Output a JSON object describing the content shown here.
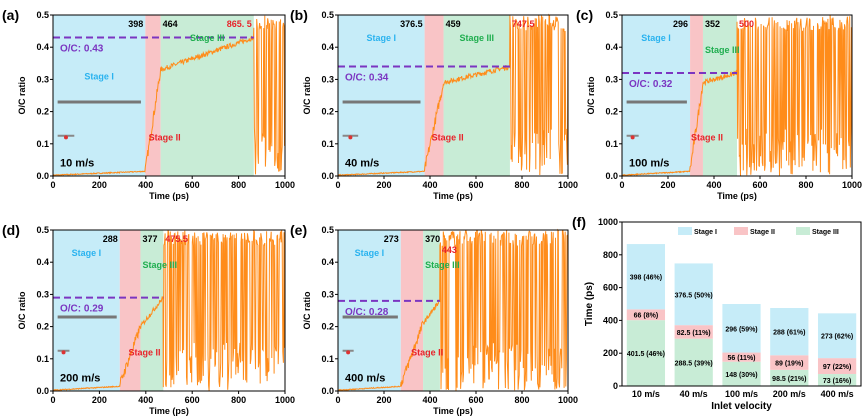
{
  "colors": {
    "stage1": "#c6ecf8",
    "stage2": "#f9c4c6",
    "stage3": "#c8ecd6",
    "curve": "#ff8c1a",
    "dash": "#7b35c1",
    "stage1_text": "#2ab3ef",
    "stage2_text": "#e8232a",
    "stage3_text": "#1fae4f"
  },
  "chart_data": [
    {
      "type": "line",
      "panel": "(a)",
      "velocity": "10 m/s",
      "xlabel": "Time (ps)",
      "ylabel": "O/C ratio",
      "xlim": [
        0,
        1000
      ],
      "ylim": [
        0,
        0.5
      ],
      "xticks": [
        0,
        200,
        400,
        600,
        800,
        1000
      ],
      "yticks": [
        0.0,
        0.1,
        0.2,
        0.3,
        0.4,
        0.5
      ],
      "boundaries": [
        398,
        464,
        865.5
      ],
      "boundary_labels": [
        "398",
        "464",
        "865. 5"
      ],
      "oc_label": "O/C: 0.43",
      "oc": 0.43,
      "stage_labels": [
        "Stage I",
        "Stage II",
        "Stage III"
      ],
      "plateau_start": 0.33
    },
    {
      "type": "line",
      "panel": "(b)",
      "velocity": "40 m/s",
      "xlabel": "Time (ps)",
      "ylabel": "O/C ratio",
      "xlim": [
        0,
        1000
      ],
      "ylim": [
        0,
        0.5
      ],
      "xticks": [
        0,
        200,
        400,
        600,
        800,
        1000
      ],
      "yticks": [
        0.0,
        0.1,
        0.2,
        0.3,
        0.4,
        0.5
      ],
      "boundaries": [
        376.5,
        459,
        747.5
      ],
      "boundary_labels": [
        "376.5",
        "459",
        "747.5"
      ],
      "oc_label": "O/C: 0.34",
      "oc": 0.34,
      "stage_labels": [
        "Stage I",
        "Stage II",
        "Stage III"
      ],
      "plateau_start": 0.29
    },
    {
      "type": "line",
      "panel": "(c)",
      "velocity": "100 m/s",
      "xlabel": "Time (ps)",
      "ylabel": "O/C ratio",
      "xlim": [
        0,
        1000
      ],
      "ylim": [
        0,
        0.5
      ],
      "xticks": [
        0,
        200,
        400,
        600,
        800,
        1000
      ],
      "yticks": [
        0.0,
        0.1,
        0.2,
        0.3,
        0.4,
        0.5
      ],
      "boundaries": [
        296,
        352,
        500
      ],
      "boundary_labels": [
        "296",
        "352",
        "500"
      ],
      "oc_label": "O/C: 0.32",
      "oc": 0.32,
      "stage_labels": [
        "Stage I",
        "Stage II",
        "Stage III"
      ],
      "plateau_start": 0.29
    },
    {
      "type": "line",
      "panel": "(d)",
      "velocity": "200 m/s",
      "xlabel": "Time (ps)",
      "ylabel": "O/C ratio",
      "xlim": [
        0,
        1000
      ],
      "ylim": [
        0,
        0.5
      ],
      "xticks": [
        0,
        200,
        400,
        600,
        800,
        1000
      ],
      "yticks": [
        0.0,
        0.1,
        0.2,
        0.3,
        0.4,
        0.5
      ],
      "boundaries": [
        288,
        377,
        475.5
      ],
      "boundary_labels": [
        "288",
        "377",
        "475.5"
      ],
      "oc_label": "O/C: 0.29",
      "oc": 0.29,
      "stage_labels": [
        "Stage I",
        "Stage II",
        "Stage III"
      ],
      "plateau_start": 0.2
    },
    {
      "type": "line",
      "panel": "(e)",
      "velocity": "400 m/s",
      "xlabel": "Time (ps)",
      "ylabel": "O/C ratio",
      "xlim": [
        0,
        1000
      ],
      "ylim": [
        0,
        0.5
      ],
      "xticks": [
        0,
        200,
        400,
        600,
        800,
        1000
      ],
      "yticks": [
        0.0,
        0.1,
        0.2,
        0.3,
        0.4,
        0.5
      ],
      "boundaries": [
        273,
        370,
        443
      ],
      "boundary_labels": [
        "273",
        "370",
        "443"
      ],
      "oc_label": "O/C: 0.28",
      "oc": 0.28,
      "stage_labels": [
        "Stage I",
        "Stage II",
        "Stage III"
      ],
      "plateau_start": 0.21
    },
    {
      "type": "bar",
      "stacked": true,
      "panel": "(f)",
      "xlabel": "Inlet velocity",
      "ylabel": "Time (ps)",
      "ylim": [
        0,
        1000
      ],
      "yticks": [
        0,
        200,
        400,
        600,
        800,
        1000
      ],
      "legend": "top",
      "categories": [
        "10 m/s",
        "40 m/s",
        "100 m/s",
        "200 m/s",
        "400 m/s"
      ],
      "series": [
        {
          "name": "Stage III",
          "values": [
            401.5,
            288.5,
            148,
            98.5,
            73
          ],
          "labels": [
            "401.5 (46%)",
            "288.5 (39%)",
            "148 (30%)",
            "98.5 (21%)",
            "73 (16%)"
          ]
        },
        {
          "name": "Stage II",
          "values": [
            66,
            82.5,
            56,
            89,
            97
          ],
          "labels": [
            "66 (8%)",
            "82.5 (11%)",
            "56 (11%)",
            "89 (19%)",
            "97 (22%)"
          ]
        },
        {
          "name": "Stage I",
          "values": [
            398,
            376.5,
            296,
            288,
            273
          ],
          "labels": [
            "398 (46%)",
            "376.5 (50%)",
            "296 (59%)",
            "288 (61%)",
            "273 (62%)"
          ]
        }
      ]
    }
  ]
}
